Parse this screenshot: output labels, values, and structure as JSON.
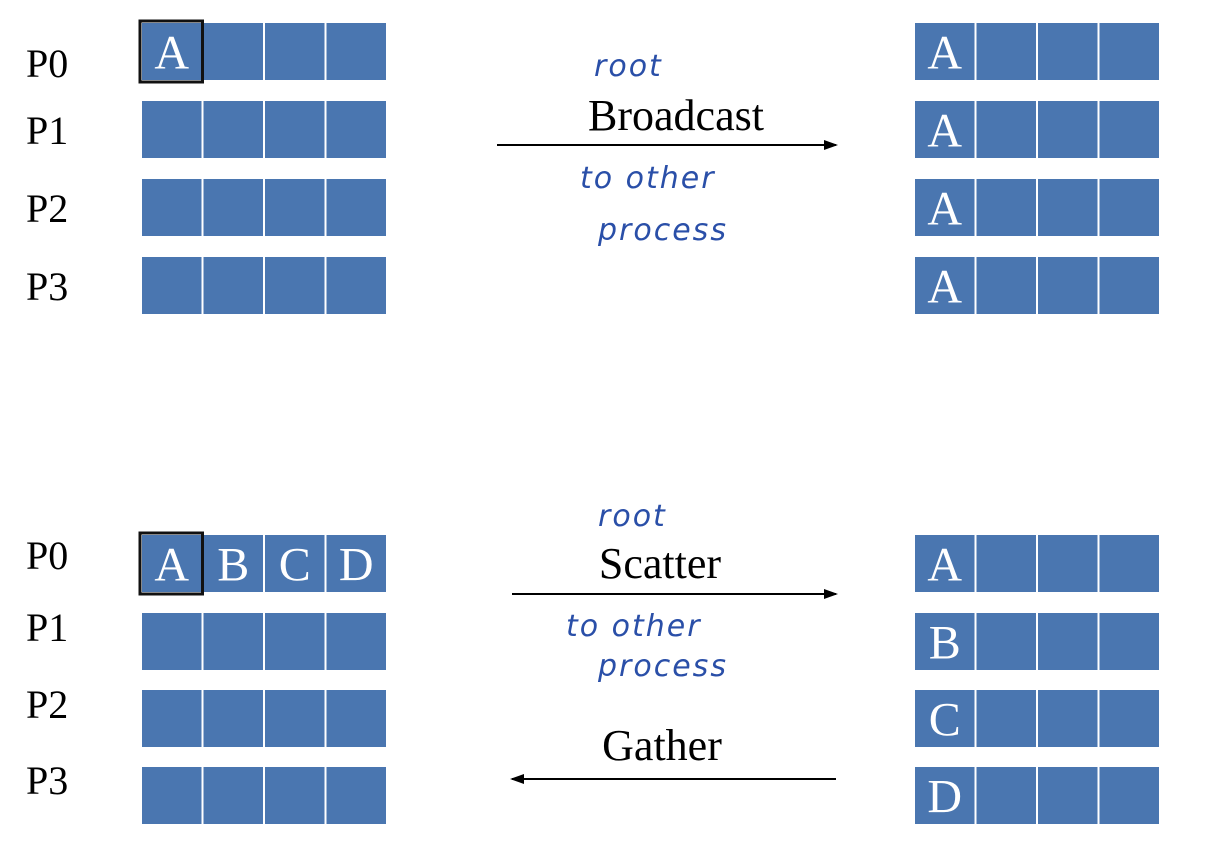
{
  "colors": {
    "cell_fill": "#4a76b0",
    "cell_border": "#ffffff",
    "highlight_border": "#111111",
    "arrow": "#000000",
    "handwriting": "#2a4fa8"
  },
  "broadcast": {
    "rows": [
      "P0",
      "P1",
      "P2",
      "P3"
    ],
    "before": [
      [
        "A",
        "",
        "",
        ""
      ],
      [
        "",
        "",
        "",
        ""
      ],
      [
        "",
        "",
        "",
        ""
      ],
      [
        "",
        "",
        "",
        ""
      ]
    ],
    "after": [
      [
        "A",
        "",
        "",
        ""
      ],
      [
        "A",
        "",
        "",
        ""
      ],
      [
        "A",
        "",
        "",
        ""
      ],
      [
        "A",
        "",
        "",
        ""
      ]
    ],
    "label": "Broadcast",
    "note_above": "root",
    "note_below_1": "to other",
    "note_below_2": "process"
  },
  "scatter_gather": {
    "rows": [
      "P0",
      "P1",
      "P2",
      "P3"
    ],
    "before": [
      [
        "A",
        "B",
        "C",
        "D"
      ],
      [
        "",
        "",
        "",
        ""
      ],
      [
        "",
        "",
        "",
        ""
      ],
      [
        "",
        "",
        "",
        ""
      ]
    ],
    "after": [
      [
        "A",
        "",
        "",
        ""
      ],
      [
        "B",
        "",
        "",
        ""
      ],
      [
        "C",
        "",
        "",
        ""
      ],
      [
        "D",
        "",
        "",
        ""
      ]
    ],
    "scatter_label": "Scatter",
    "gather_label": "Gather",
    "note_above": "root",
    "note_below_1": "to other",
    "note_below_2": "process"
  }
}
